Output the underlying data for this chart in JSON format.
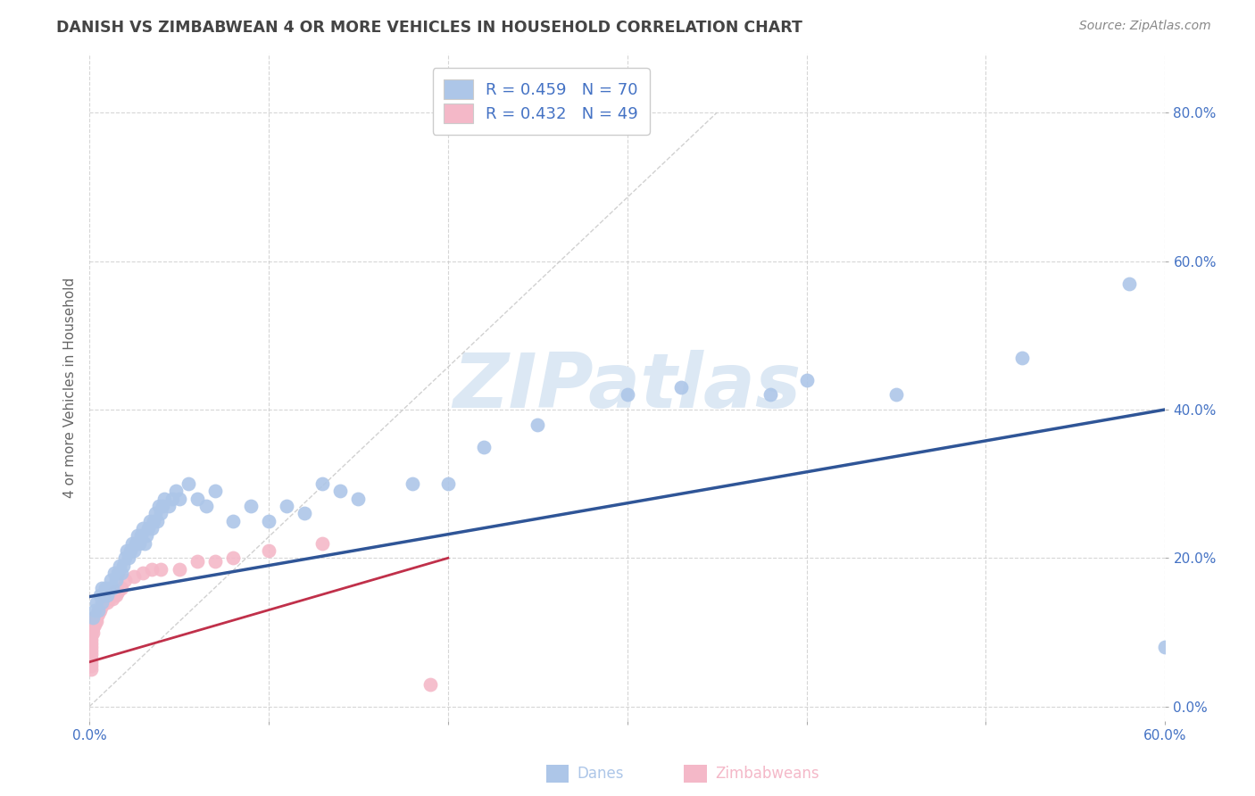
{
  "title": "DANISH VS ZIMBABWEAN 4 OR MORE VEHICLES IN HOUSEHOLD CORRELATION CHART",
  "source": "Source: ZipAtlas.com",
  "ylabel": "4 or more Vehicles in Household",
  "xlim": [
    0.0,
    0.6
  ],
  "ylim": [
    -0.02,
    0.88
  ],
  "xticks": [
    0.0,
    0.1,
    0.2,
    0.3,
    0.4,
    0.5,
    0.6
  ],
  "xticklabels": [
    "0.0%",
    "",
    "",
    "",
    "",
    "",
    "60.0%"
  ],
  "yticks": [
    0.0,
    0.2,
    0.4,
    0.6,
    0.8
  ],
  "yticklabels": [
    "0.0%",
    "20.0%",
    "40.0%",
    "60.0%",
    "80.0%"
  ],
  "danes_color": "#adc6e8",
  "zimbabweans_color": "#f4b8c8",
  "danes_line_color": "#2f5597",
  "zimbabweans_line_color": "#c0304a",
  "danes_R": 0.459,
  "danes_N": 70,
  "zimbabweans_R": 0.432,
  "zimbabweans_N": 49,
  "legend_danes_label": "R = 0.459   N = 70",
  "legend_zimbabweans_label": "R = 0.432   N = 49",
  "watermark": "ZIPatlas",
  "danes_x": [
    0.002,
    0.003,
    0.004,
    0.005,
    0.006,
    0.007,
    0.007,
    0.008,
    0.009,
    0.01,
    0.011,
    0.012,
    0.013,
    0.014,
    0.015,
    0.016,
    0.017,
    0.018,
    0.019,
    0.02,
    0.021,
    0.022,
    0.023,
    0.024,
    0.025,
    0.026,
    0.027,
    0.028,
    0.029,
    0.03,
    0.031,
    0.032,
    0.033,
    0.034,
    0.035,
    0.036,
    0.037,
    0.038,
    0.039,
    0.04,
    0.041,
    0.042,
    0.044,
    0.046,
    0.048,
    0.05,
    0.055,
    0.06,
    0.065,
    0.07,
    0.08,
    0.09,
    0.1,
    0.11,
    0.12,
    0.13,
    0.14,
    0.15,
    0.18,
    0.2,
    0.22,
    0.25,
    0.3,
    0.33,
    0.38,
    0.4,
    0.45,
    0.52,
    0.58,
    0.6
  ],
  "danes_y": [
    0.12,
    0.13,
    0.14,
    0.13,
    0.15,
    0.14,
    0.16,
    0.15,
    0.16,
    0.15,
    0.16,
    0.17,
    0.16,
    0.18,
    0.17,
    0.18,
    0.19,
    0.18,
    0.19,
    0.2,
    0.21,
    0.2,
    0.21,
    0.22,
    0.21,
    0.22,
    0.23,
    0.22,
    0.23,
    0.24,
    0.22,
    0.23,
    0.24,
    0.25,
    0.24,
    0.25,
    0.26,
    0.25,
    0.27,
    0.26,
    0.27,
    0.28,
    0.27,
    0.28,
    0.29,
    0.28,
    0.3,
    0.28,
    0.27,
    0.29,
    0.25,
    0.27,
    0.25,
    0.27,
    0.26,
    0.3,
    0.29,
    0.28,
    0.3,
    0.3,
    0.35,
    0.38,
    0.42,
    0.43,
    0.42,
    0.44,
    0.42,
    0.47,
    0.57,
    0.08
  ],
  "zimbabweans_x": [
    0.001,
    0.001,
    0.001,
    0.001,
    0.001,
    0.001,
    0.001,
    0.001,
    0.001,
    0.001,
    0.001,
    0.001,
    0.001,
    0.001,
    0.002,
    0.002,
    0.002,
    0.002,
    0.003,
    0.003,
    0.003,
    0.004,
    0.004,
    0.005,
    0.005,
    0.006,
    0.007,
    0.008,
    0.009,
    0.01,
    0.011,
    0.012,
    0.013,
    0.014,
    0.015,
    0.016,
    0.018,
    0.02,
    0.025,
    0.03,
    0.035,
    0.04,
    0.05,
    0.06,
    0.07,
    0.08,
    0.1,
    0.13,
    0.19
  ],
  "zimbabweans_y": [
    0.05,
    0.055,
    0.06,
    0.065,
    0.07,
    0.075,
    0.08,
    0.085,
    0.09,
    0.095,
    0.1,
    0.105,
    0.11,
    0.115,
    0.1,
    0.105,
    0.11,
    0.115,
    0.11,
    0.115,
    0.12,
    0.115,
    0.12,
    0.125,
    0.13,
    0.13,
    0.135,
    0.14,
    0.145,
    0.14,
    0.145,
    0.15,
    0.145,
    0.155,
    0.15,
    0.155,
    0.16,
    0.17,
    0.175,
    0.18,
    0.185,
    0.185,
    0.185,
    0.195,
    0.195,
    0.2,
    0.21,
    0.22,
    0.03
  ],
  "danes_trend_x0": 0.0,
  "danes_trend_y0": 0.148,
  "danes_trend_x1": 0.6,
  "danes_trend_y1": 0.4,
  "zimbabweans_trend_x0": 0.0,
  "zimbabweans_trend_y0": 0.06,
  "zimbabweans_trend_x1": 0.2,
  "zimbabweans_trend_y1": 0.2,
  "ref_line_x0": 0.0,
  "ref_line_y0": 0.0,
  "ref_line_x1": 0.35,
  "ref_line_y1": 0.8,
  "background_color": "#ffffff",
  "grid_color": "#cccccc",
  "title_color": "#444444",
  "axis_label_color": "#666666",
  "tick_label_color": "#4472c4",
  "legend_text_color": "#4472c4",
  "title_fontsize": 12.5,
  "axis_label_fontsize": 11,
  "tick_fontsize": 11,
  "legend_fontsize": 13,
  "watermark_color": "#dce8f4",
  "watermark_fontsize": 62,
  "bottom_label_danes": "Danes",
  "bottom_label_zimbabweans": "Zimbabweans"
}
